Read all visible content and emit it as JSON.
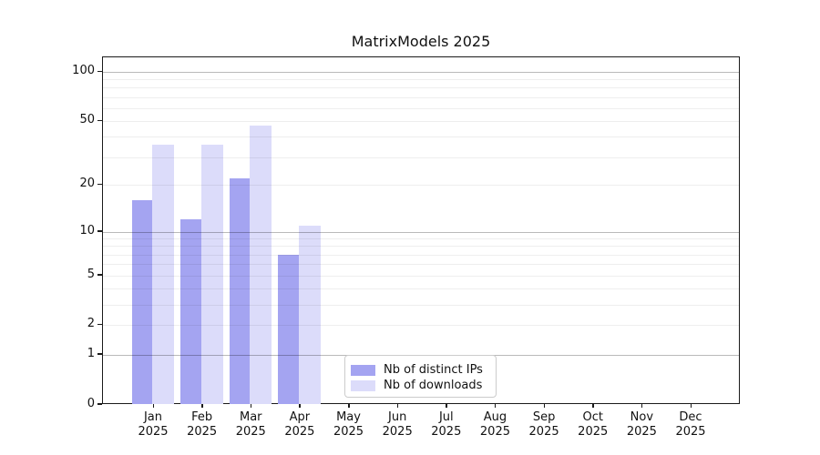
{
  "chart_data": {
    "type": "bar",
    "title": "MatrixModels 2025",
    "categories": [
      "Jan 2025",
      "Feb 2025",
      "Mar 2025",
      "Apr 2025",
      "May 2025",
      "Jun 2025",
      "Jul 2025",
      "Aug 2025",
      "Sep 2025",
      "Oct 2025",
      "Nov 2025",
      "Dec 2025"
    ],
    "series": [
      {
        "name": "Nb of distinct IPs",
        "color": "#a4a4f1",
        "values": [
          16,
          12,
          22,
          7,
          0,
          0,
          0,
          0,
          0,
          0,
          0,
          0
        ]
      },
      {
        "name": "Nb of downloads",
        "color": "#dcdcfa",
        "values": [
          36,
          36,
          47,
          11,
          0,
          0,
          0,
          0,
          0,
          0,
          0,
          0
        ]
      }
    ],
    "xlabel": "",
    "ylabel": "",
    "yscale": "log1p",
    "yticks": [
      0,
      1,
      2,
      5,
      10,
      20,
      50,
      100
    ],
    "ylim": [
      0,
      122
    ],
    "grid": "on",
    "grid_major_values": [
      1,
      10,
      100
    ],
    "grid_minor_values": [
      2,
      3,
      4,
      5,
      6,
      7,
      8,
      9,
      20,
      30,
      40,
      50,
      60,
      70,
      80,
      90
    ],
    "legend_position": "lower center inside",
    "colors": {
      "spine": "#1a1a1a",
      "major_grid": "#b9b9b9",
      "minor_grid": "#ededed",
      "legend_border": "#cccccc",
      "background": "#ffffff"
    }
  }
}
